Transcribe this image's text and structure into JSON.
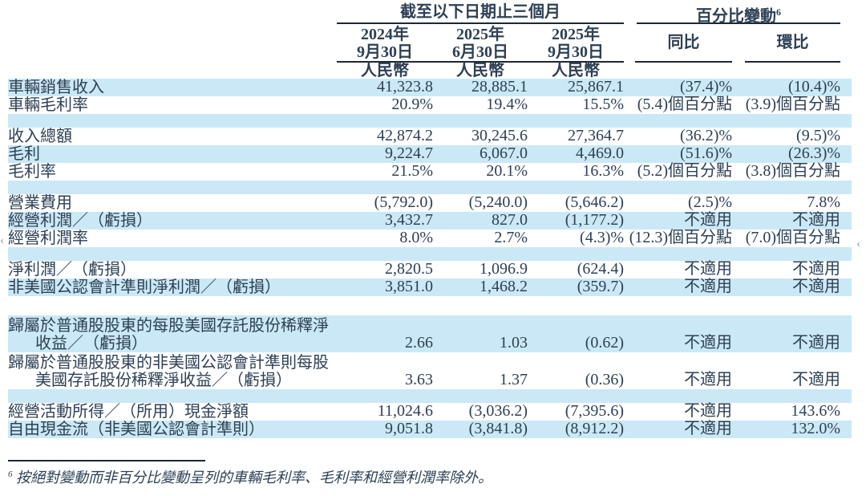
{
  "colors": {
    "band_blue": "#cbe8f7",
    "text": "#2d4054",
    "rule": "#1c2733"
  },
  "header": {
    "group1": "截至以下日期止三個月",
    "group2": "百分比變動",
    "group2_superscript": "6",
    "columns": [
      {
        "line1": "2024年",
        "line2": "9月30日",
        "sub": "人民幣"
      },
      {
        "line1": "2025年",
        "line2": "6月30日",
        "sub": "人民幣"
      },
      {
        "line1": "2025年",
        "line2": "9月30日",
        "sub": "人民幣"
      },
      {
        "label": "同比"
      },
      {
        "label": "環比"
      }
    ]
  },
  "table": {
    "rows": [
      {
        "type": "data",
        "band": true,
        "label": "車輛銷售收入",
        "values": [
          "41,323.8",
          "28,885.1",
          "25,867.1",
          "(37.4)%",
          "(10.4)%"
        ]
      },
      {
        "type": "data",
        "band": false,
        "label": "車輛毛利率",
        "values": [
          "20.9%",
          "19.4%",
          "15.5%",
          "(5.4)個百分點",
          "(3.9)個百分點"
        ]
      },
      {
        "type": "spacer",
        "band": true
      },
      {
        "type": "data",
        "band": false,
        "label": "收入總額",
        "values": [
          "42,874.2",
          "30,245.6",
          "27,364.7",
          "(36.2)%",
          "(9.5)%"
        ]
      },
      {
        "type": "data",
        "band": true,
        "label": "毛利",
        "values": [
          "9,224.7",
          "6,067.0",
          "4,469.0",
          "(51.6)%",
          "(26.3)%"
        ]
      },
      {
        "type": "data",
        "band": false,
        "label": "毛利率",
        "values": [
          "21.5%",
          "20.1%",
          "16.3%",
          "(5.2)個百分點",
          "(3.8)個百分點"
        ]
      },
      {
        "type": "spacer",
        "band": true
      },
      {
        "type": "data",
        "band": false,
        "label": "營業費用",
        "values": [
          "(5,792.0)",
          "(5,240.0)",
          "(5,646.2)",
          "(2.5)%",
          "7.8%"
        ]
      },
      {
        "type": "data",
        "band": true,
        "label": "經營利潤／（虧損）",
        "values": [
          "3,432.7",
          "827.0",
          "(1,177.2)",
          "不適用",
          "不適用"
        ]
      },
      {
        "type": "data",
        "band": false,
        "label": "經營利潤率",
        "values": [
          "8.0%",
          "2.7%",
          "(4.3)%",
          "(12.3)個百分點",
          "(7.0)個百分點"
        ]
      },
      {
        "type": "spacer",
        "band": true
      },
      {
        "type": "data",
        "band": false,
        "label": "淨利潤／（虧損）",
        "values": [
          "2,820.5",
          "1,096.9",
          "(624.4)",
          "不適用",
          "不適用"
        ]
      },
      {
        "type": "data",
        "band": true,
        "label": "非美國公認會計準則淨利潤／（虧損）",
        "values": [
          "3,851.0",
          "1,468.2",
          "(359.7)",
          "不適用",
          "不適用"
        ]
      },
      {
        "type": "spacer",
        "band": false
      },
      {
        "type": "data",
        "band": true,
        "label_lines": [
          "歸屬於普通股股東的每股美國存託股份稀釋淨",
          "收益／（虧損）"
        ],
        "values": [
          "2.66",
          "1.03",
          "(0.62)",
          "不適用",
          "不適用"
        ]
      },
      {
        "type": "data",
        "band": false,
        "label_lines": [
          "歸屬於普通股股東的非美國公認會計準則每股",
          "美國存託股份稀釋淨收益／（虧損）"
        ],
        "values": [
          "3.63",
          "1.37",
          "(0.36)",
          "不適用",
          "不適用"
        ]
      },
      {
        "type": "spacer",
        "band": true
      },
      {
        "type": "data",
        "band": false,
        "label": "經營活動所得／（所用）現金淨額",
        "values": [
          "11,024.6",
          "(3,036.2)",
          "(7,395.6)",
          "不適用",
          "143.6%"
        ]
      },
      {
        "type": "data",
        "band": true,
        "label": "自由現金流（非美國公認會計準則）",
        "values": [
          "9,051.8",
          "(3,841.8)",
          "(8,912.2)",
          "不適用",
          "132.0%"
        ]
      }
    ]
  },
  "footnote": {
    "marker": "6",
    "text": "按絕對變動而非百分比變動呈列的車輛毛利率、毛利率和經營利潤率除外。"
  },
  "artifacts": {
    "left_arrow": "‹",
    "right_arrow": "‹"
  }
}
